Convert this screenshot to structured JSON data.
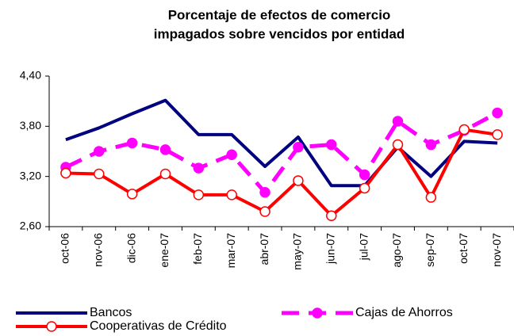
{
  "chart_data": {
    "type": "line",
    "title": [
      "Porcentaje de efectos de comercio",
      "impagados sobre vencidos por entidad"
    ],
    "categories": [
      "oct-06",
      "nov-06",
      "dic-06",
      "ene-07",
      "feb-07",
      "mar-07",
      "abr-07",
      "may-07",
      "jun-07",
      "jul-07",
      "ago-07",
      "sep-07",
      "oct-07",
      "nov-07"
    ],
    "series": [
      {
        "name": "Bancos",
        "color": "#000080",
        "values": [
          3.64,
          3.78,
          3.95,
          4.11,
          3.7,
          3.7,
          3.32,
          3.67,
          3.09,
          3.09,
          3.55,
          3.2,
          3.62,
          3.6
        ]
      },
      {
        "name": "Cajas de Ahorros",
        "color": "#ff00ff",
        "values": [
          3.31,
          3.5,
          3.6,
          3.52,
          3.3,
          3.46,
          3.01,
          3.55,
          3.58,
          3.22,
          3.86,
          3.58,
          3.75,
          3.96
        ]
      },
      {
        "name": "Cooperativas de Crédito",
        "color": "#ff0000",
        "values": [
          3.24,
          3.23,
          2.99,
          3.23,
          2.98,
          2.98,
          2.78,
          3.15,
          2.73,
          3.06,
          3.58,
          2.95,
          3.76,
          3.7
        ]
      }
    ],
    "ylim": [
      2.6,
      4.4
    ],
    "yticks": [
      {
        "value": 2.6,
        "label": "2,60"
      },
      {
        "value": 3.2,
        "label": "3,20"
      },
      {
        "value": 3.8,
        "label": "3,80"
      },
      {
        "value": 4.4,
        "label": "4,40"
      }
    ],
    "grid": false
  }
}
